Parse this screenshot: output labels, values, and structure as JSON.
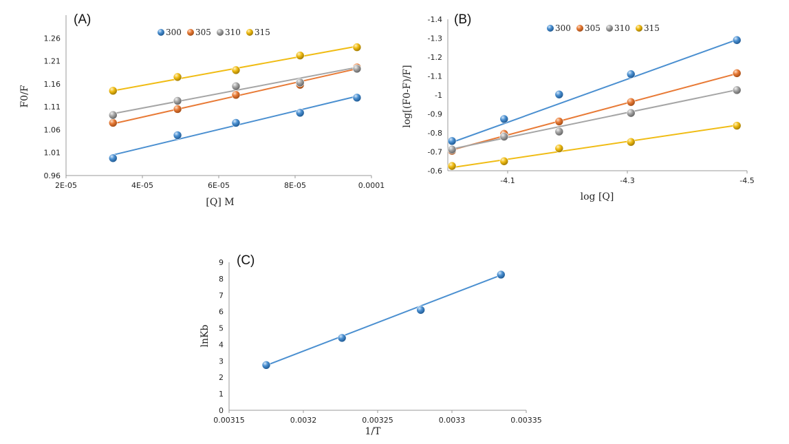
{
  "chart_data": [
    {
      "panel": "(A)",
      "type": "scatter",
      "xlabel": "[Q] M",
      "ylabel": "F0/F",
      "xlim": [
        2e-05,
        0.0001
      ],
      "ylim": [
        0.96,
        1.31
      ],
      "xticks": [
        2e-05,
        4e-05,
        6e-05,
        8e-05,
        0.0001
      ],
      "xtick_labels": [
        "2E-05",
        "4E-05",
        "6E-05",
        "8E-05",
        "0.0001"
      ],
      "yticks": [
        0.96,
        1.01,
        1.06,
        1.11,
        1.16,
        1.21,
        1.26
      ],
      "ytick_labels": [
        "0.96",
        "1.01",
        "1.06",
        "1.11",
        "1.16",
        "1.21",
        "1.26"
      ],
      "legend_position": "top",
      "series": [
        {
          "name": "300",
          "color": "#4a8fd0",
          "x": [
            3.23e-05,
            4.92e-05,
            6.45e-05,
            8.13e-05,
            9.62e-05
          ],
          "y": [
            0.998,
            1.048,
            1.075,
            1.097,
            1.13
          ],
          "fit": [
            1.005,
            1.133
          ]
        },
        {
          "name": "305",
          "color": "#e87a36",
          "x": [
            3.23e-05,
            4.92e-05,
            6.45e-05,
            8.13e-05,
            9.62e-05
          ],
          "y": [
            1.075,
            1.105,
            1.136,
            1.158,
            1.196
          ],
          "fit": [
            1.073,
            1.193
          ]
        },
        {
          "name": "310",
          "color": "#a5a5a5",
          "x": [
            3.23e-05,
            4.92e-05,
            6.45e-05,
            8.13e-05,
            9.62e-05
          ],
          "y": [
            1.092,
            1.123,
            1.155,
            1.163,
            1.193
          ],
          "fit": [
            1.095,
            1.196
          ]
        },
        {
          "name": "315",
          "color": "#f0bc14",
          "x": [
            3.23e-05,
            4.92e-05,
            6.45e-05,
            8.13e-05,
            9.62e-05
          ],
          "y": [
            1.145,
            1.175,
            1.19,
            1.222,
            1.24
          ],
          "fit": [
            1.145,
            1.242
          ]
        }
      ]
    },
    {
      "panel": "(B)",
      "type": "scatter",
      "xlabel": "log [Q]",
      "ylabel": "log[(F0-F)/F]",
      "xlim": [
        -4.0,
        -4.5
      ],
      "ylim": [
        -0.6,
        -1.4
      ],
      "xticks": [
        -4.1,
        -4.3,
        -4.5
      ],
      "xtick_labels": [
        "-4.1",
        "-4.3",
        "-4.5"
      ],
      "yticks": [
        -0.6,
        -0.7,
        -0.8,
        -0.9,
        -1.0,
        -1.1,
        -1.2,
        -1.3,
        -1.4
      ],
      "ytick_labels": [
        "-0.6",
        "-0.7",
        "-0.8",
        "-0.9",
        "-1",
        "-1.1",
        "-1.2",
        "-1.3",
        "-1.4"
      ],
      "legend_position": "top-right",
      "series": [
        {
          "name": "300",
          "color": "#4a8fd0",
          "x": [
            -4.007,
            -4.094,
            -4.186,
            -4.306,
            -4.483
          ],
          "y": [
            -0.757,
            -0.873,
            -1.003,
            -1.11,
            -1.29
          ],
          "fit": [
            -0.75,
            -1.292
          ]
        },
        {
          "name": "305",
          "color": "#e87a36",
          "x": [
            -4.007,
            -4.094,
            -4.186,
            -4.306,
            -4.483
          ],
          "y": [
            -0.705,
            -0.795,
            -0.86,
            -0.963,
            -1.115
          ],
          "fit": [
            -0.71,
            -1.113
          ]
        },
        {
          "name": "310",
          "color": "#a5a5a5",
          "x": [
            -4.007,
            -4.094,
            -4.186,
            -4.306,
            -4.483
          ],
          "y": [
            -0.712,
            -0.78,
            -0.807,
            -0.905,
            -1.026
          ],
          "fit": [
            -0.715,
            -1.027
          ]
        },
        {
          "name": "315",
          "color": "#f0bc14",
          "x": [
            -4.007,
            -4.094,
            -4.186,
            -4.306,
            -4.483
          ],
          "y": [
            -0.625,
            -0.65,
            -0.718,
            -0.752,
            -0.838
          ],
          "fit": [
            -0.617,
            -0.84
          ]
        }
      ]
    },
    {
      "panel": "(C)",
      "type": "scatter",
      "xlabel": "1/T",
      "ylabel": "lnKb",
      "xlim": [
        0.00315,
        0.00335
      ],
      "ylim": [
        0,
        9
      ],
      "xticks": [
        0.00315,
        0.0032,
        0.00325,
        0.0033,
        0.00335
      ],
      "xtick_labels": [
        "0.00315",
        "0.0032",
        "0.00325",
        "0.0033",
        "0.00335"
      ],
      "yticks": [
        0,
        1,
        2,
        3,
        4,
        5,
        6,
        7,
        8,
        9
      ],
      "ytick_labels": [
        "0",
        "1",
        "2",
        "3",
        "4",
        "5",
        "6",
        "7",
        "8",
        "9"
      ],
      "series": [
        {
          "name": "lnKb",
          "color": "#4a8fd0",
          "x": [
            0.003175,
            0.003226,
            0.003279,
            0.003333
          ],
          "y": [
            2.75,
            4.4,
            6.1,
            8.25
          ],
          "fit": [
            2.73,
            8.22
          ]
        }
      ]
    }
  ]
}
